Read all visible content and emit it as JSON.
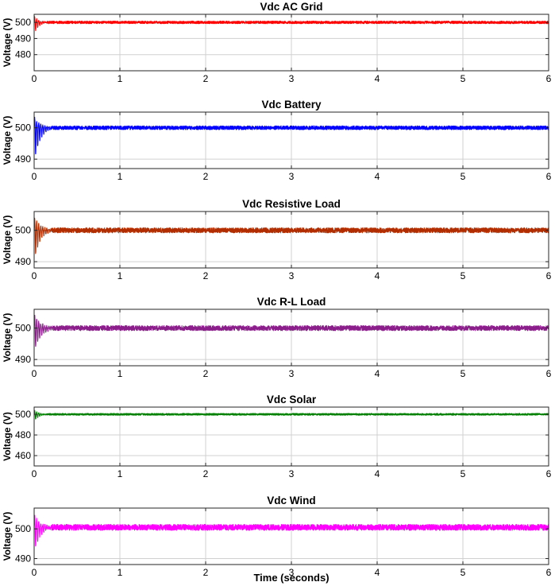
{
  "chart_data": [
    {
      "type": "line",
      "title": "Vdc AC Grid",
      "ylabel": "Voltage (V)",
      "xlabel": "",
      "xlim": [
        0,
        6
      ],
      "ylim": [
        470,
        505
      ],
      "x_ticks": [
        "0",
        "1",
        "2",
        "3",
        "4",
        "5",
        "6"
      ],
      "y_ticks": [
        {
          "value": 480,
          "label": "480"
        },
        {
          "value": 490,
          "label": "490"
        },
        {
          "value": 500,
          "label": "500"
        }
      ],
      "grid": true,
      "series": [
        {
          "color": "#ff0000",
          "steady_value": 500,
          "transient_peak": 504,
          "transient_min": 493,
          "settling_time": 0.15,
          "ripple": 0.8
        }
      ]
    },
    {
      "type": "line",
      "title": "Vdc Battery",
      "ylabel": "Voltage (V)",
      "xlabel": "",
      "xlim": [
        0,
        6
      ],
      "ylim": [
        487,
        505
      ],
      "x_ticks": [
        "0",
        "1",
        "2",
        "3",
        "4",
        "5",
        "6"
      ],
      "y_ticks": [
        {
          "value": 490,
          "label": "490"
        },
        {
          "value": 500,
          "label": "500"
        }
      ],
      "grid": true,
      "series": [
        {
          "color": "#0000ff",
          "steady_value": 500,
          "transient_peak": 503.5,
          "transient_min": 488.5,
          "settling_time": 0.2,
          "ripple": 0.6
        }
      ]
    },
    {
      "type": "line",
      "title": "Vdc Resistive Load",
      "ylabel": "Voltage (V)",
      "xlabel": "",
      "xlim": [
        0,
        6
      ],
      "ylim": [
        488,
        506
      ],
      "x_ticks": [
        "0",
        "1",
        "2",
        "3",
        "4",
        "5",
        "6"
      ],
      "y_ticks": [
        {
          "value": 490,
          "label": "490"
        },
        {
          "value": 500,
          "label": "500"
        }
      ],
      "grid": true,
      "series": [
        {
          "color": "#b22e00",
          "steady_value": 500,
          "transient_peak": 504.5,
          "transient_min": 490,
          "settling_time": 0.2,
          "ripple": 0.8
        }
      ]
    },
    {
      "type": "line",
      "title": "Vdc R-L Load",
      "ylabel": "Voltage (V)",
      "xlabel": "",
      "xlim": [
        0,
        6
      ],
      "ylim": [
        488,
        506
      ],
      "x_ticks": [
        "0",
        "1",
        "2",
        "3",
        "4",
        "5",
        "6"
      ],
      "y_ticks": [
        {
          "value": 490,
          "label": "490"
        },
        {
          "value": 500,
          "label": "500"
        }
      ],
      "grid": true,
      "series": [
        {
          "color": "#8b1e8b",
          "steady_value": 500,
          "transient_peak": 504.5,
          "transient_min": 492,
          "settling_time": 0.22,
          "ripple": 0.8
        }
      ]
    },
    {
      "type": "line",
      "title": "Vdc Solar",
      "ylabel": "Voltage (V)",
      "xlabel": "",
      "xlim": [
        0,
        6
      ],
      "ylim": [
        450,
        507
      ],
      "x_ticks": [
        "0",
        "1",
        "2",
        "3",
        "4",
        "5",
        "6"
      ],
      "y_ticks": [
        {
          "value": 460,
          "label": "460"
        },
        {
          "value": 480,
          "label": "480"
        },
        {
          "value": 500,
          "label": "500"
        }
      ],
      "grid": true,
      "series": [
        {
          "color": "#008000",
          "steady_value": 500,
          "transient_peak": 504,
          "transient_min": 493,
          "settling_time": 0.15,
          "ripple": 0.9
        }
      ]
    },
    {
      "type": "line",
      "title": "Vdc Wind",
      "ylabel": "Voltage (V)",
      "xlabel": "Time (seconds)",
      "xlim": [
        0,
        6
      ],
      "ylim": [
        488,
        507
      ],
      "x_ticks": [
        "0",
        "1",
        "2",
        "3",
        "4",
        "5",
        "6"
      ],
      "y_ticks": [
        {
          "value": 490,
          "label": "490"
        },
        {
          "value": 500,
          "label": "500"
        }
      ],
      "grid": true,
      "series": [
        {
          "color": "#ff00ff",
          "steady_value": 500.5,
          "transient_peak": 505,
          "transient_min": 492,
          "settling_time": 0.2,
          "ripple": 1.0
        }
      ]
    }
  ]
}
